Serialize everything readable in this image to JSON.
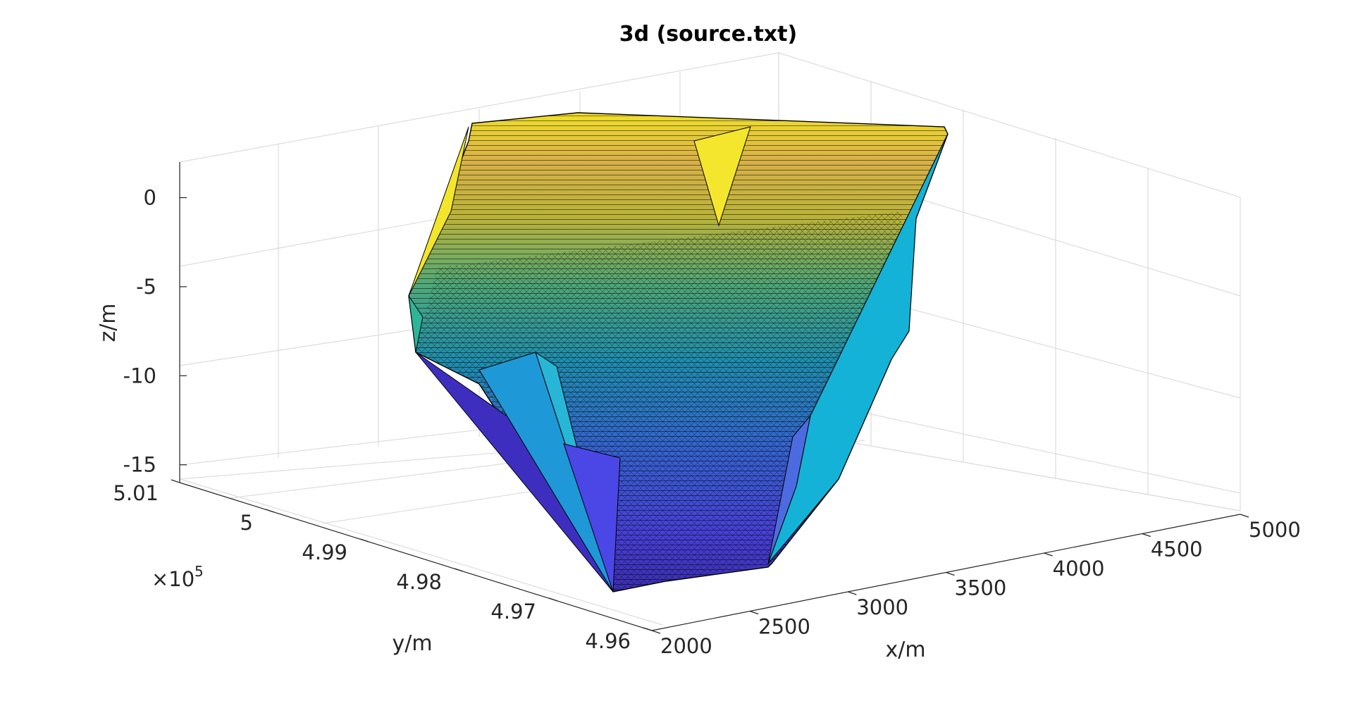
{
  "chart_data": {
    "type": "surface",
    "title": "3d (source.txt)",
    "xlabel": "x/m",
    "ylabel": "y/m",
    "zlabel": "z/m",
    "x_ticks": [
      "2000",
      "2500",
      "3000",
      "3500",
      "4000",
      "4500",
      "5000"
    ],
    "y_ticks": [
      "4.96",
      "4.97",
      "4.98",
      "4.99",
      "5",
      "5.01"
    ],
    "z_ticks": [
      "-15",
      "-10",
      "-5",
      "0"
    ],
    "y_exponent_label": "×10",
    "y_exponent_power": "5",
    "x_range": [
      2000,
      5000
    ],
    "y_range": [
      496000,
      501000
    ],
    "z_range": [
      -16,
      2
    ],
    "grid": true,
    "colormap": [
      "#3e26a8",
      "#4a4af0",
      "#2e84f0",
      "#1fb0d6",
      "#2ec5a0",
      "#8cc64a",
      "#e8c030",
      "#f9fb0e"
    ]
  }
}
